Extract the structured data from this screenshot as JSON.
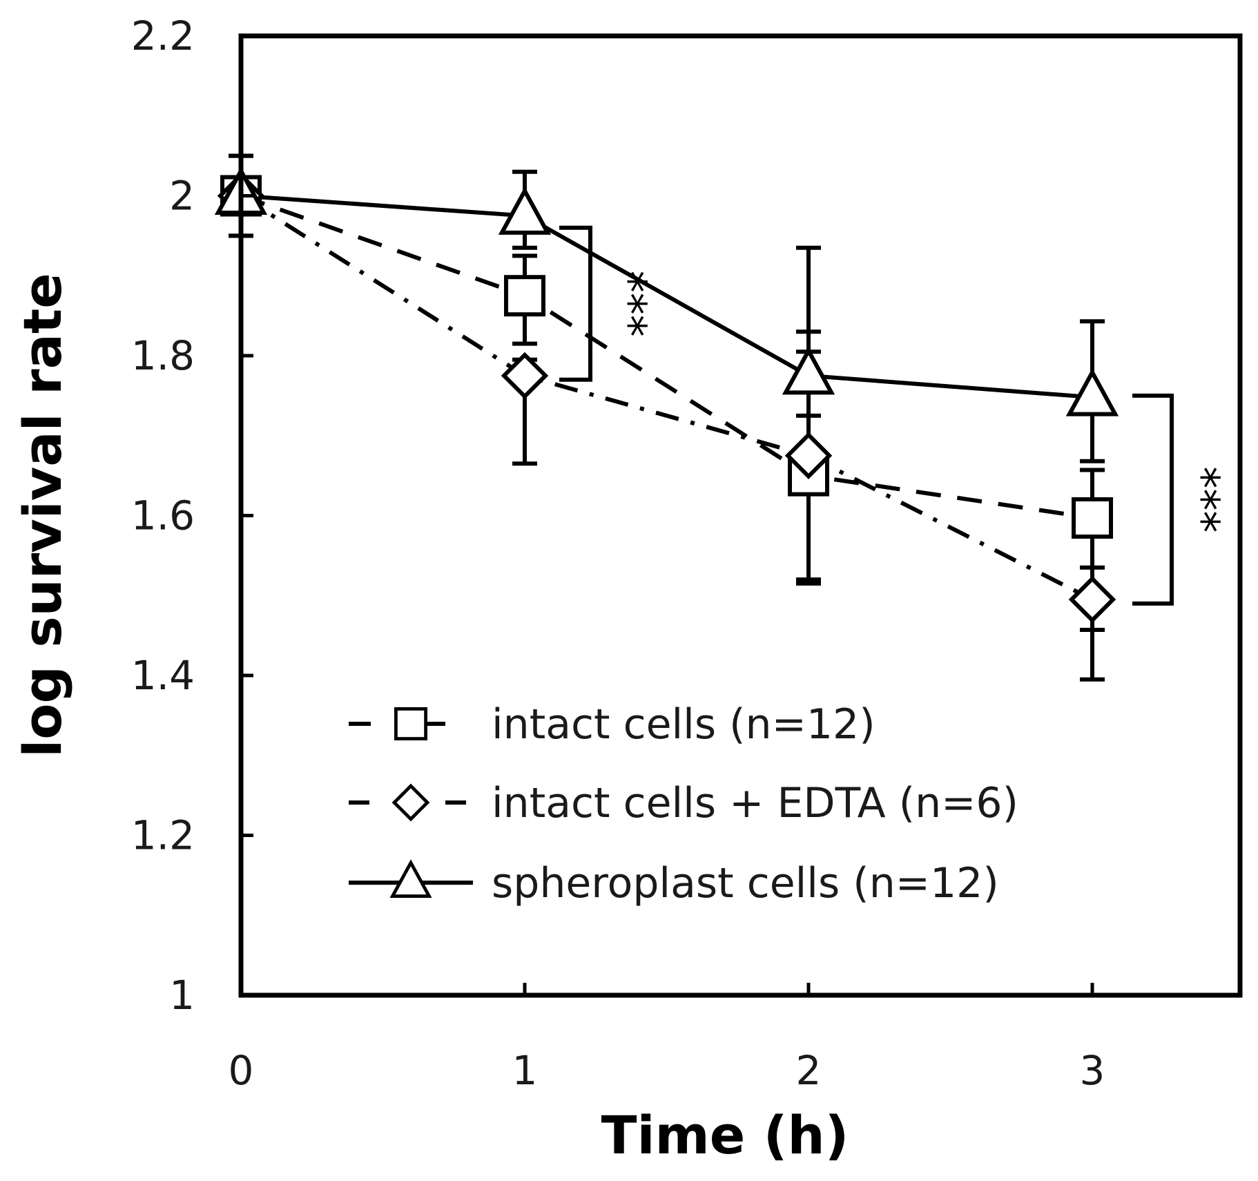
{
  "chart_data": {
    "type": "line",
    "xlabel": "Time (h)",
    "ylabel": "log survival rate",
    "xlim": [
      0,
      3.5
    ],
    "ylim": [
      1,
      2.2
    ],
    "x_ticks": [
      "0",
      "1",
      "2",
      "3"
    ],
    "y_ticks": [
      "1",
      "1.2",
      "1.4",
      "1.6",
      "1.8",
      "2",
      "2.2"
    ],
    "grid": false,
    "legend_position": "bottom-center",
    "x": [
      0,
      1,
      2,
      3
    ],
    "series": [
      {
        "name": "intact cells (n=12)",
        "marker": "square",
        "line": "dashed",
        "values": [
          2.0,
          1.875,
          1.65,
          1.597
        ],
        "err_low": [
          0.05,
          0.06,
          0.13,
          0.14
        ],
        "err_high": [
          0.05,
          0.05,
          0.18,
          0.06
        ]
      },
      {
        "name": "intact cells + EDTA (n=6)",
        "marker": "diamond",
        "line": "dash-dot",
        "values": [
          2.0,
          1.775,
          1.675,
          1.495
        ],
        "err_low": [
          0.0,
          0.11,
          0.16,
          0.1
        ],
        "err_high": [
          0.0,
          0.02,
          0.13,
          0.04
        ]
      },
      {
        "name": "spheroplast cells (n=12)",
        "marker": "triangle",
        "line": "solid",
        "values": [
          2.0,
          1.975,
          1.775,
          1.748
        ],
        "err_low": [
          0.05,
          0.04,
          0.05,
          0.08
        ],
        "err_high": [
          0.05,
          0.055,
          0.16,
          0.095
        ]
      }
    ],
    "annotations": [
      {
        "text": "***",
        "x": 1,
        "y_from": 1.77,
        "y_to": 1.96
      },
      {
        "text": "***",
        "x": 3,
        "y_from": 1.49,
        "y_to": 1.75
      }
    ]
  }
}
